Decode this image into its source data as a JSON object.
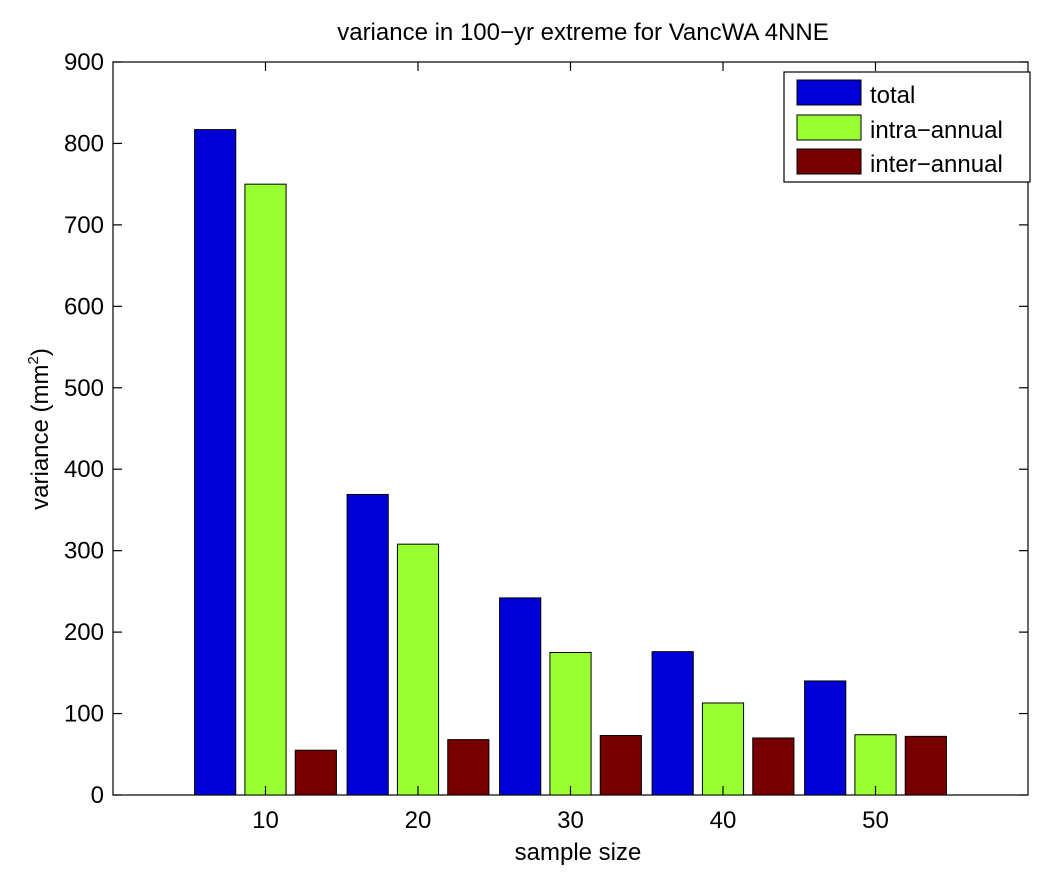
{
  "chart_data": {
    "type": "bar",
    "title": "variance in 100−yr extreme for VancWA 4NNE",
    "xlabel": "sample size",
    "ylabel": "variance (mm",
    "ylabel_superscript": "2",
    "ylabel_close": ")",
    "categories": [
      "10",
      "20",
      "30",
      "40",
      "50"
    ],
    "ylim": [
      0,
      900
    ],
    "xlim": [
      0,
      60
    ],
    "yticks": [
      0,
      100,
      200,
      300,
      400,
      500,
      600,
      700,
      800,
      900
    ],
    "grid": false,
    "legend_position": "top-right",
    "series": [
      {
        "name": "total",
        "color": "#0000d6",
        "values": [
          817,
          369,
          242,
          176,
          140
        ]
      },
      {
        "name": "intra−annual",
        "color": "#99ff33",
        "values": [
          750,
          308,
          175,
          113,
          74
        ]
      },
      {
        "name": "inter−annual",
        "color": "#770000",
        "values": [
          55,
          68,
          73,
          70,
          72
        ]
      }
    ]
  }
}
